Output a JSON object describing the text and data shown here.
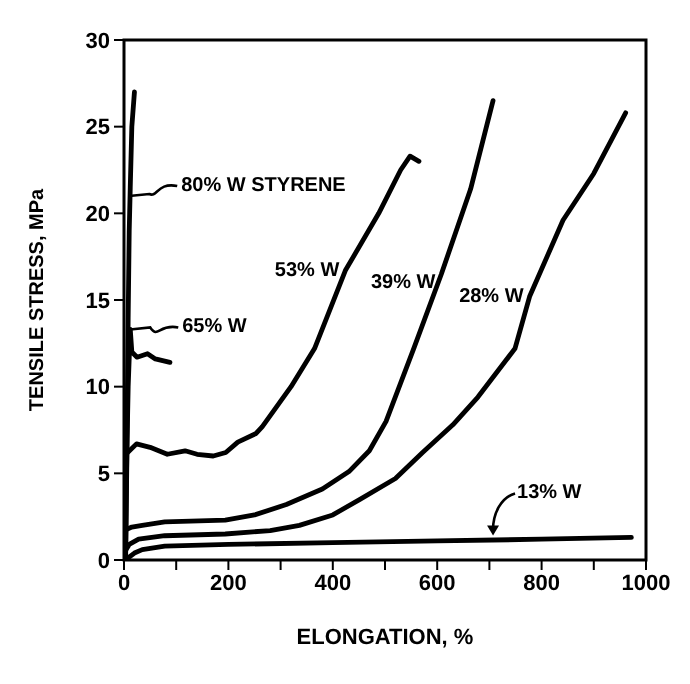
{
  "chart_data": {
    "type": "line",
    "xlabel": "ELONGATION, %",
    "ylabel": "TENSILE STRESS, MPa",
    "xlim": [
      0,
      1000
    ],
    "ylim": [
      0,
      30
    ],
    "xticks": [
      0,
      {
        "value": 100,
        "label": null
      },
      200,
      {
        "value": 300,
        "label": null
      },
      400,
      {
        "value": 500,
        "label": null
      },
      600,
      {
        "value": 700,
        "label": null
      },
      800,
      {
        "value": 900,
        "label": null
      },
      1000
    ],
    "yticks": [
      0,
      5,
      10,
      15,
      20,
      25,
      30
    ],
    "grid": false,
    "legend": false,
    "marker": "none",
    "line_style": "solid",
    "series": [
      {
        "color": "#000000",
        "x": [
          3,
          6,
          8,
          10,
          12,
          15,
          20
        ],
        "values": [
          0,
          8,
          14,
          19,
          21.5,
          25,
          27
        ]
      },
      {
        "color": "#000000",
        "x": [
          3,
          6,
          8,
          12,
          15,
          25,
          45,
          60,
          88
        ],
        "values": [
          0,
          7,
          10,
          13.3,
          12,
          11.7,
          11.9,
          11.6,
          11.4
        ]
      },
      {
        "color": "#000000",
        "x": [
          7,
          24,
          50,
          83,
          117,
          140,
          171,
          195,
          218,
          253,
          265,
          320,
          365,
          424,
          488,
          530,
          548,
          565
        ],
        "values": [
          6.2,
          6.7,
          6.5,
          6.1,
          6.3,
          6.1,
          6.0,
          6.2,
          6.8,
          7.3,
          7.7,
          10,
          12.2,
          16.7,
          20,
          22.5,
          23.3,
          23.0
        ]
      },
      {
        "color": "#000000",
        "x": [
          0,
          15,
          35,
          78,
          194,
          250,
          311,
          380,
          431,
          470,
          502,
          555,
          608,
          664,
          707
        ],
        "values": [
          1.7,
          1.9,
          2.0,
          2.2,
          2.3,
          2.6,
          3.2,
          4.1,
          5.1,
          6.3,
          8.0,
          12.2,
          16.5,
          21.4,
          26.5
        ]
      },
      {
        "color": "#000000",
        "x": [
          0,
          10,
          28,
          78,
          194,
          280,
          336,
          400,
          452,
          520,
          572,
          630,
          678,
          749,
          777,
          841,
          900,
          961
        ],
        "values": [
          0.4,
          0.9,
          1.2,
          1.4,
          1.5,
          1.7,
          2.0,
          2.6,
          3.5,
          4.7,
          6.2,
          7.8,
          9.4,
          12.2,
          15.2,
          19.6,
          22.3,
          25.8
        ]
      },
      {
        "color": "#000000",
        "x": [
          7,
          20,
          35,
          78,
          200,
          400,
          600,
          800,
          972
        ],
        "values": [
          0.1,
          0.4,
          0.6,
          0.8,
          0.9,
          1.0,
          1.1,
          1.2,
          1.3
        ]
      }
    ],
    "annotations": [
      {
        "text": "80% W STYRENE",
        "x": 10,
        "y": 21
      },
      {
        "text": "65% W",
        "x": 12,
        "y": 13.3
      },
      {
        "text": "53% W",
        "x": 424,
        "y": 16.7
      },
      {
        "text": "39% W",
        "x": 608,
        "y": 16
      },
      {
        "text": "28% W",
        "x": 777,
        "y": 15.2
      },
      {
        "text": "13% W",
        "x": 707,
        "y": 1.3
      }
    ]
  }
}
